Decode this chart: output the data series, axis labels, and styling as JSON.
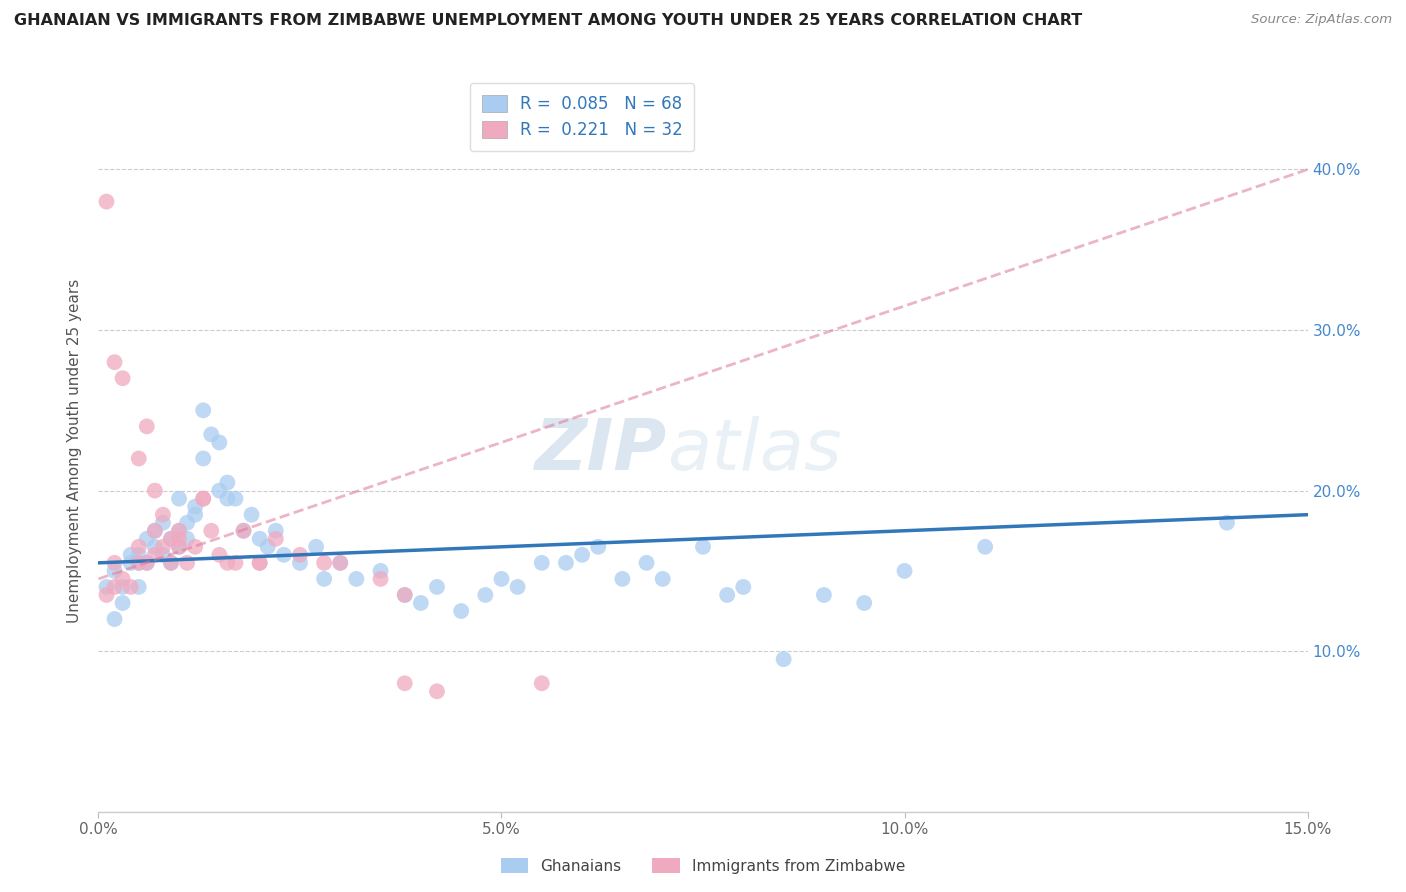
{
  "title": "GHANAIAN VS IMMIGRANTS FROM ZIMBABWE UNEMPLOYMENT AMONG YOUTH UNDER 25 YEARS CORRELATION CHART",
  "source": "Source: ZipAtlas.com",
  "ylabel": "Unemployment Among Youth under 25 years",
  "xmin": 0.0,
  "xmax": 0.15,
  "ymin": 0.0,
  "ymax": 0.45,
  "x_ticks": [
    0.0,
    0.05,
    0.1,
    0.15
  ],
  "x_tick_labels": [
    "0.0%",
    "5.0%",
    "10.0%",
    "15.0%"
  ],
  "y_ticks": [
    0.0,
    0.1,
    0.2,
    0.3,
    0.4
  ],
  "y_tick_labels": [
    "",
    "10.0%",
    "20.0%",
    "30.0%",
    "40.0%"
  ],
  "ghanaian_color": "#aaccf0",
  "zimbabwe_color": "#f0aac0",
  "line_ghanaian_color": "#3377bb",
  "line_zimbabwe_color": "#dd7799",
  "legend_R_ghanaian": "0.085",
  "legend_N_ghanaian": "68",
  "legend_R_zimbabwe": "0.221",
  "legend_N_zimbabwe": "32",
  "watermark_zip": "ZIP",
  "watermark_atlas": "atlas",
  "ghanaian_x": [
    0.001,
    0.002,
    0.002,
    0.003,
    0.003,
    0.004,
    0.004,
    0.005,
    0.005,
    0.005,
    0.006,
    0.006,
    0.007,
    0.007,
    0.008,
    0.008,
    0.009,
    0.009,
    0.01,
    0.01,
    0.01,
    0.011,
    0.011,
    0.012,
    0.012,
    0.013,
    0.013,
    0.014,
    0.015,
    0.015,
    0.016,
    0.016,
    0.017,
    0.018,
    0.019,
    0.02,
    0.021,
    0.022,
    0.023,
    0.025,
    0.027,
    0.028,
    0.03,
    0.032,
    0.035,
    0.038,
    0.04,
    0.042,
    0.045,
    0.048,
    0.05,
    0.052,
    0.055,
    0.058,
    0.06,
    0.062,
    0.065,
    0.068,
    0.07,
    0.075,
    0.078,
    0.08,
    0.085,
    0.09,
    0.095,
    0.1,
    0.11,
    0.14
  ],
  "ghanaian_y": [
    0.14,
    0.15,
    0.12,
    0.14,
    0.13,
    0.155,
    0.16,
    0.14,
    0.155,
    0.16,
    0.17,
    0.155,
    0.165,
    0.175,
    0.18,
    0.16,
    0.17,
    0.155,
    0.165,
    0.175,
    0.195,
    0.17,
    0.18,
    0.185,
    0.19,
    0.25,
    0.22,
    0.235,
    0.23,
    0.2,
    0.205,
    0.195,
    0.195,
    0.175,
    0.185,
    0.17,
    0.165,
    0.175,
    0.16,
    0.155,
    0.165,
    0.145,
    0.155,
    0.145,
    0.15,
    0.135,
    0.13,
    0.14,
    0.125,
    0.135,
    0.145,
    0.14,
    0.155,
    0.155,
    0.16,
    0.165,
    0.145,
    0.155,
    0.145,
    0.165,
    0.135,
    0.14,
    0.095,
    0.135,
    0.13,
    0.15,
    0.165,
    0.18
  ],
  "zimbabwe_x": [
    0.001,
    0.002,
    0.002,
    0.003,
    0.004,
    0.005,
    0.005,
    0.006,
    0.007,
    0.007,
    0.008,
    0.009,
    0.009,
    0.01,
    0.01,
    0.011,
    0.012,
    0.013,
    0.014,
    0.015,
    0.016,
    0.017,
    0.018,
    0.02,
    0.022,
    0.025,
    0.028,
    0.03,
    0.035,
    0.038,
    0.042,
    0.055
  ],
  "zimbabwe_y": [
    0.135,
    0.14,
    0.155,
    0.145,
    0.14,
    0.155,
    0.165,
    0.155,
    0.16,
    0.175,
    0.165,
    0.155,
    0.17,
    0.165,
    0.175,
    0.155,
    0.165,
    0.195,
    0.175,
    0.16,
    0.155,
    0.155,
    0.175,
    0.155,
    0.17,
    0.16,
    0.155,
    0.155,
    0.145,
    0.135,
    0.075,
    0.08
  ],
  "zimbabwe_outliers_x": [
    0.001,
    0.002,
    0.003,
    0.005,
    0.006,
    0.007,
    0.008,
    0.01,
    0.013,
    0.02,
    0.038
  ],
  "zimbabwe_outliers_y": [
    0.38,
    0.28,
    0.27,
    0.22,
    0.24,
    0.2,
    0.185,
    0.17,
    0.195,
    0.155,
    0.08
  ],
  "line_gh_x0": 0.0,
  "line_gh_x1": 0.15,
  "line_gh_y0": 0.155,
  "line_gh_y1": 0.185,
  "line_zim_x0": 0.0,
  "line_zim_x1": 0.15,
  "line_zim_y0": 0.145,
  "line_zim_y1": 0.4
}
